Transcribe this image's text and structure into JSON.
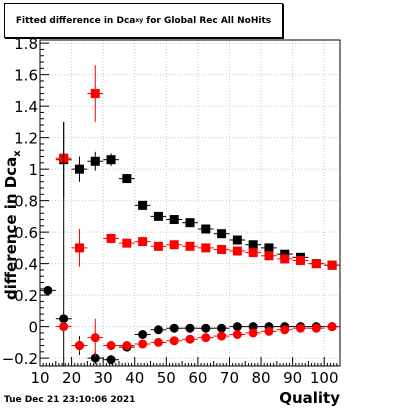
{
  "header": {
    "title_main": "Fitted difference in Dca",
    "title_sub": "xy",
    "title_rest": "for Global Rec All NoHits"
  },
  "footer": {
    "timestamp": "Tue Dec 21 23:10:06 2021"
  },
  "colors": {
    "series_black": "#000000",
    "series_red": "#ff0000",
    "grid": "#c8c8c8"
  },
  "chart_data": {
    "type": "scatter",
    "title": "Fitted difference in Dca xy for Global Rec All NoHits",
    "xlabel": "Quality",
    "ylabel": "difference in Dca x",
    "ylabel_text": "difference in Dca",
    "ylabel_sub": "x",
    "xlim": [
      10,
      105
    ],
    "ylim": [
      -0.25,
      1.82
    ],
    "x_ticks": [
      10,
      20,
      30,
      40,
      50,
      60,
      70,
      80,
      90,
      100
    ],
    "y_ticks": [
      -0.2,
      0,
      0.2,
      0.4,
      0.6,
      0.8,
      1,
      1.2,
      1.4,
      1.6,
      1.8
    ],
    "y_tick_labels": [
      "−0.2",
      "0",
      "0.2",
      "0.4",
      "0.6",
      "0.8",
      "1",
      "1.2",
      "1.4",
      "1.6",
      "1.8"
    ],
    "grid": true,
    "series": [
      {
        "marker": "square",
        "color": "black",
        "x": [
          17.5,
          22.5,
          27.5,
          32.5,
          37.5,
          42.5,
          47.5,
          52.5,
          57.5,
          62.5,
          67.5,
          72.5,
          77.5,
          82.5,
          87.5,
          92.5,
          97.5,
          102.5
        ],
        "y": [
          1.06,
          1.0,
          1.05,
          1.06,
          0.94,
          0.77,
          0.7,
          0.68,
          0.66,
          0.62,
          0.59,
          0.55,
          0.52,
          0.5,
          0.46,
          0.44,
          0.4,
          0.39
        ],
        "err": [
          0.24,
          0.08,
          0.06,
          0.04,
          0.02,
          0.02,
          0.02,
          0.02,
          0.02,
          0.02,
          0.02,
          0.02,
          0.02,
          0.02,
          0.02,
          0.02,
          0.02,
          0.02
        ]
      },
      {
        "marker": "square",
        "color": "red",
        "x": [
          17.5,
          22.5,
          27.5,
          32.5,
          37.5,
          42.5,
          47.5,
          52.5,
          57.5,
          62.5,
          67.5,
          72.5,
          77.5,
          82.5,
          87.5,
          92.5,
          97.5,
          102.5
        ],
        "y": [
          1.07,
          0.5,
          1.48,
          0.56,
          0.53,
          0.54,
          0.51,
          0.52,
          0.51,
          0.5,
          0.49,
          0.48,
          0.47,
          0.45,
          0.43,
          0.42,
          0.4,
          0.39
        ],
        "err": [
          0.0,
          0.12,
          0.18,
          0.03,
          0.02,
          0.02,
          0.02,
          0.02,
          0.02,
          0.02,
          0.02,
          0.02,
          0.02,
          0.02,
          0.02,
          0.02,
          0.02,
          0.02
        ]
      },
      {
        "marker": "circle",
        "color": "black",
        "x": [
          12.5,
          17.5,
          22.5,
          27.5,
          32.5,
          37.5,
          42.5,
          47.5,
          52.5,
          57.5,
          62.5,
          67.5,
          72.5,
          77.5,
          82.5,
          87.5,
          92.5,
          97.5,
          102.5
        ],
        "y": [
          0.23,
          0.05,
          -0.12,
          -0.2,
          -0.21,
          -0.13,
          -0.05,
          -0.02,
          -0.01,
          -0.01,
          -0.01,
          -0.01,
          0.0,
          0.0,
          0.0,
          0.0,
          0.0,
          0.0,
          0.0
        ],
        "err": [
          0.02,
          1.25,
          0.06,
          0.04,
          0.03,
          0.02,
          0.02,
          0.02,
          0.01,
          0.01,
          0.01,
          0.01,
          0.01,
          0.01,
          0.01,
          0.01,
          0.01,
          0.01,
          0.01
        ]
      },
      {
        "marker": "circle",
        "color": "red",
        "x": [
          17.5,
          22.5,
          27.5,
          32.5,
          37.5,
          42.5,
          47.5,
          52.5,
          57.5,
          62.5,
          67.5,
          72.5,
          77.5,
          82.5,
          87.5,
          92.5,
          97.5,
          102.5
        ],
        "y": [
          0.0,
          -0.12,
          -0.07,
          -0.12,
          -0.12,
          -0.11,
          -0.1,
          -0.09,
          -0.08,
          -0.07,
          -0.06,
          -0.05,
          -0.04,
          -0.03,
          -0.02,
          -0.01,
          -0.01,
          0.0
        ],
        "err": [
          0.0,
          0.04,
          0.12,
          0.03,
          0.02,
          0.02,
          0.02,
          0.01,
          0.01,
          0.01,
          0.01,
          0.01,
          0.01,
          0.01,
          0.01,
          0.01,
          0.01,
          0.01
        ]
      }
    ]
  }
}
